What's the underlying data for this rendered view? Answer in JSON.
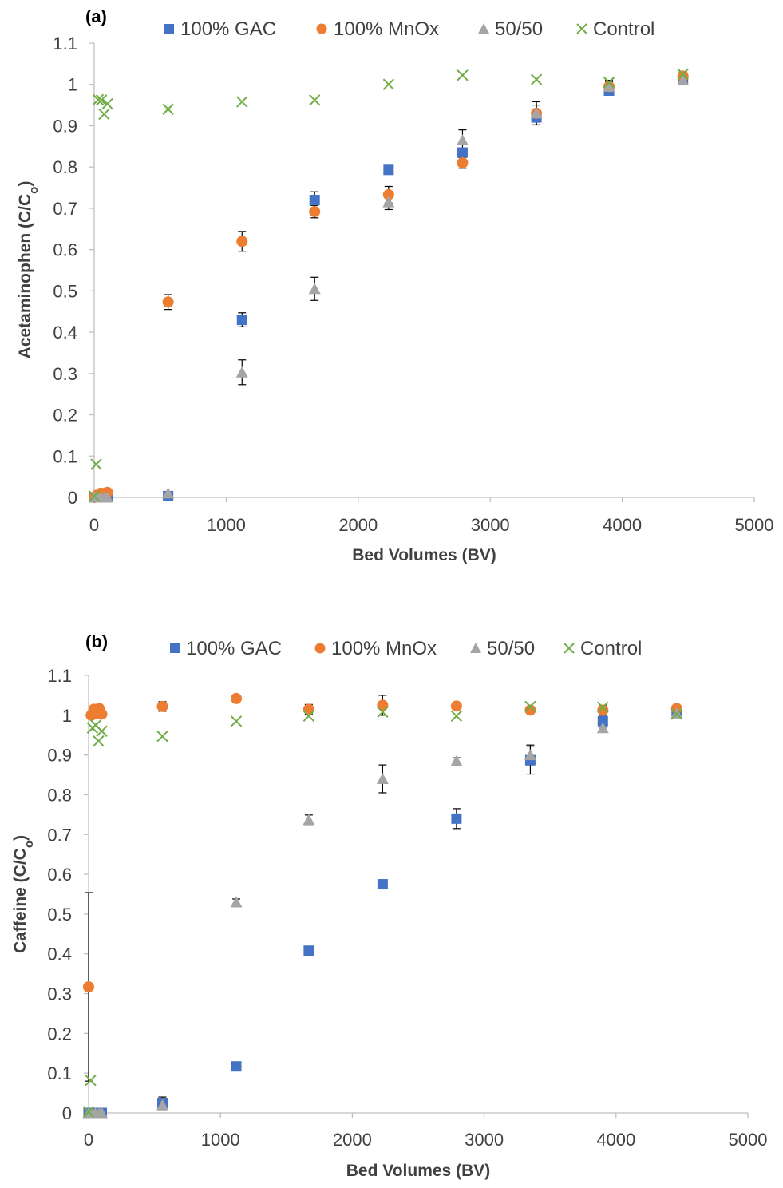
{
  "colors": {
    "gac": "#4472C4",
    "mnox": "#ED7D31",
    "mix": "#A5A5A5",
    "control": "#70AD47",
    "axis": "#BFBFBF",
    "error": "#000000"
  },
  "chart_data": [
    {
      "type": "scatter",
      "panel_label": "(a)",
      "xlabel": "Bed Volumes (BV)",
      "ylabel_main": "Acetaminophen (C/C",
      "ylabel_sub": "o",
      "ylabel_end": ")",
      "xlim": [
        0,
        5000
      ],
      "ylim": [
        0,
        1.1
      ],
      "xticks": [
        0,
        1000,
        2000,
        3000,
        4000,
        5000
      ],
      "yticks": [
        0,
        0.1,
        0.2,
        0.3,
        0.4,
        0.5,
        0.6,
        0.7,
        0.8,
        0.9,
        1,
        1.1
      ],
      "grid": false,
      "legend_position": "top",
      "series": [
        {
          "name": "100% GAC",
          "marker": "square",
          "color": "#4472C4",
          "x": [
            0,
            20,
            50,
            80,
            100,
            560,
            1120,
            1670,
            2230,
            2790,
            3350,
            3900,
            4460
          ],
          "y": [
            0,
            0,
            0,
            0,
            0,
            0.003,
            0.43,
            0.72,
            0.793,
            0.835,
            0.92,
            0.985,
            1.01
          ],
          "err": [
            0,
            0,
            0,
            0,
            0,
            0,
            0.017,
            0.02,
            0,
            0.01,
            0.018,
            0.01,
            0.008
          ]
        },
        {
          "name": "100% MnOx",
          "marker": "circle",
          "color": "#ED7D31",
          "x": [
            0,
            20,
            50,
            80,
            100,
            560,
            1120,
            1670,
            2230,
            2790,
            3350,
            3900,
            4460
          ],
          "y": [
            0,
            0.005,
            0.01,
            0.01,
            0.012,
            0.473,
            0.62,
            0.692,
            0.733,
            0.81,
            0.93,
            0.995,
            1.02
          ],
          "err": [
            0,
            0,
            0,
            0,
            0,
            0.018,
            0.024,
            0.015,
            0.02,
            0.013,
            0.02,
            0.015,
            0.01
          ]
        },
        {
          "name": "50/50",
          "marker": "triangle",
          "color": "#A5A5A5",
          "x": [
            0,
            20,
            50,
            80,
            100,
            560,
            1120,
            1670,
            2230,
            2790,
            3350,
            3900,
            4460
          ],
          "y": [
            0,
            0,
            0,
            0,
            0,
            0.01,
            0.303,
            0.505,
            0.715,
            0.865,
            0.93,
            0.995,
            1.01
          ],
          "err": [
            0,
            0,
            0,
            0,
            0,
            0,
            0.03,
            0.028,
            0.018,
            0.025,
            0.028,
            0.012,
            0.008
          ]
        },
        {
          "name": "Control",
          "marker": "x",
          "color": "#70AD47",
          "x": [
            0,
            15,
            30,
            55,
            75,
            100,
            560,
            1120,
            1670,
            2230,
            2790,
            3350,
            3900,
            4460
          ],
          "y": [
            0.003,
            0.08,
            0.963,
            0.962,
            0.928,
            0.953,
            0.94,
            0.958,
            0.962,
            1.0,
            1.022,
            1.012,
            1.005,
            1.025
          ],
          "err": [
            0,
            0,
            0,
            0,
            0,
            0,
            0,
            0,
            0,
            0,
            0,
            0,
            0,
            0
          ]
        }
      ]
    },
    {
      "type": "scatter",
      "panel_label": "(b)",
      "xlabel": "Bed Volumes (BV)",
      "ylabel_main": "Caffeine (C/C",
      "ylabel_sub": "o",
      "ylabel_end": ")",
      "xlim": [
        0,
        5000
      ],
      "ylim": [
        0,
        1.1
      ],
      "xticks": [
        0,
        1000,
        2000,
        3000,
        4000,
        5000
      ],
      "yticks": [
        0,
        0.1,
        0.2,
        0.3,
        0.4,
        0.5,
        0.6,
        0.7,
        0.8,
        0.9,
        1,
        1.1
      ],
      "grid": false,
      "legend_position": "top",
      "series": [
        {
          "name": "100% GAC",
          "marker": "square",
          "color": "#4472C4",
          "x": [
            0,
            20,
            50,
            80,
            100,
            560,
            1120,
            1670,
            2230,
            2790,
            3350,
            3900,
            4460
          ],
          "y": [
            0,
            0,
            0,
            0,
            0,
            0.025,
            0.117,
            0.408,
            0.575,
            0.74,
            0.887,
            0.985,
            1.01
          ],
          "err": [
            0,
            0,
            0,
            0,
            0,
            0.015,
            0,
            0,
            0,
            0.025,
            0.035,
            0.015,
            0.008
          ]
        },
        {
          "name": "100% MnOx",
          "marker": "circle",
          "color": "#ED7D31",
          "x": [
            0,
            20,
            40,
            60,
            80,
            100,
            560,
            1120,
            1670,
            2230,
            2790,
            3350,
            3900,
            4460
          ],
          "y": [
            0.317,
            1.0,
            1.015,
            1.005,
            1.017,
            1.003,
            1.022,
            1.042,
            1.015,
            1.025,
            1.023,
            1.013,
            1.013,
            1.017
          ],
          "err": [
            0.237,
            0,
            0,
            0,
            0,
            0,
            0.012,
            0,
            0.012,
            0.025,
            0,
            0.008,
            0.012,
            0.008
          ]
        },
        {
          "name": "50/50",
          "marker": "triangle",
          "color": "#A5A5A5",
          "x": [
            0,
            20,
            50,
            80,
            100,
            560,
            1120,
            1670,
            2230,
            2790,
            3350,
            3900,
            4460
          ],
          "y": [
            0,
            0,
            0,
            0,
            0,
            0.02,
            0.53,
            0.737,
            0.84,
            0.885,
            0.9,
            0.968,
            1.005
          ],
          "err": [
            0,
            0,
            0,
            0,
            0,
            0.012,
            0.008,
            0.012,
            0.035,
            0.008,
            0.025,
            0.008,
            0.008
          ]
        },
        {
          "name": "Control",
          "marker": "x",
          "color": "#70AD47",
          "x": [
            0,
            15,
            30,
            55,
            75,
            100,
            560,
            1120,
            1670,
            2230,
            2790,
            3350,
            3900,
            4460
          ],
          "y": [
            0.003,
            0.082,
            0.968,
            0.975,
            0.935,
            0.96,
            0.947,
            0.985,
            0.998,
            1.008,
            0.998,
            1.022,
            1.02,
            1.003
          ],
          "err": [
            0,
            0,
            0,
            0,
            0,
            0,
            0,
            0,
            0,
            0,
            0,
            0,
            0,
            0
          ]
        }
      ]
    }
  ]
}
